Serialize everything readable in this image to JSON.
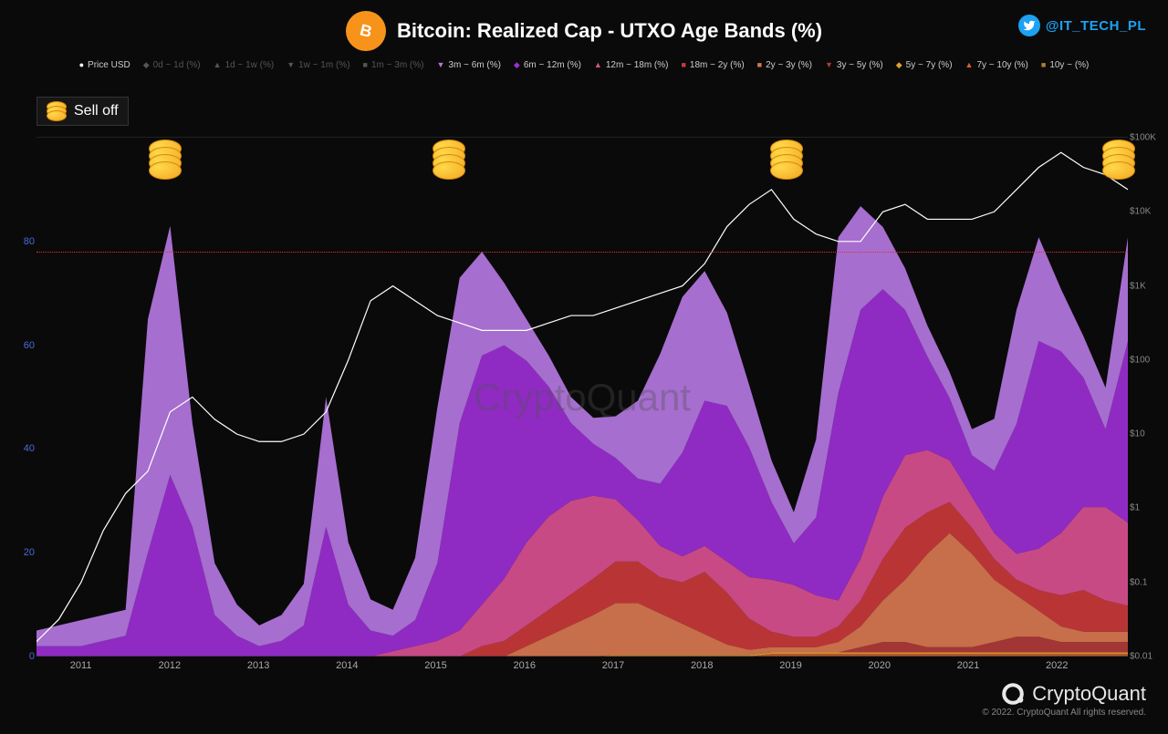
{
  "title": "Bitcoin: Realized Cap - UTXO Age Bands (%)",
  "twitter_handle": "@IT_TECH_PL",
  "selloff_label": "Sell off",
  "watermark": "CryptoQuant",
  "brand_name": "CryptoQuant",
  "copyright": "© 2022. CryptoQuant All rights reserved.",
  "legend": [
    {
      "label": "Price USD",
      "color": "#ffffff",
      "marker": "●",
      "dim": false
    },
    {
      "label": "0d ~ 1d (%)",
      "color": "#555555",
      "marker": "◆",
      "dim": true
    },
    {
      "label": "1d ~ 1w (%)",
      "color": "#555555",
      "marker": "▲",
      "dim": true
    },
    {
      "label": "1w ~ 1m (%)",
      "color": "#555555",
      "marker": "▼",
      "dim": true
    },
    {
      "label": "1m ~ 3m (%)",
      "color": "#555555",
      "marker": "■",
      "dim": true
    },
    {
      "label": "3m ~ 6m (%)",
      "color": "#b477e0",
      "marker": "▼",
      "dim": false
    },
    {
      "label": "6m ~ 12m (%)",
      "color": "#9b2fd4",
      "marker": "◆",
      "dim": false
    },
    {
      "label": "12m ~ 18m (%)",
      "color": "#d8508f",
      "marker": "▲",
      "dim": false
    },
    {
      "label": "18m ~ 2y (%)",
      "color": "#c93a3a",
      "marker": "■",
      "dim": false
    },
    {
      "label": "2y ~ 3y (%)",
      "color": "#d87750",
      "marker": "■",
      "dim": false
    },
    {
      "label": "3y ~ 5y (%)",
      "color": "#b03a3a",
      "marker": "▼",
      "dim": false
    },
    {
      "label": "5y ~ 7y (%)",
      "color": "#e0a030",
      "marker": "◆",
      "dim": false
    },
    {
      "label": "7y ~ 10y (%)",
      "color": "#d86030",
      "marker": "▲",
      "dim": false
    },
    {
      "label": "10y ~ (%)",
      "color": "#b08030",
      "marker": "■",
      "dim": false
    }
  ],
  "chart": {
    "type": "stacked-area-with-line",
    "background_color": "#0a0a0a",
    "grid_color": "#1a1a1a",
    "y_left": {
      "lim": [
        0,
        100
      ],
      "ticks": [
        0,
        20,
        40,
        60,
        80
      ],
      "color": "#4a6bd8",
      "fontsize": 11
    },
    "y_right": {
      "lim_log": [
        0.01,
        100000
      ],
      "ticks": [
        "$0.01",
        "$0.1",
        "$1",
        "$10",
        "$100",
        "$1K",
        "$10K",
        "$100K"
      ],
      "color": "#888888",
      "fontsize": 10
    },
    "x": {
      "years": [
        2011,
        2012,
        2013,
        2014,
        2015,
        2016,
        2017,
        2018,
        2019,
        2020,
        2021,
        2022
      ],
      "start": 2010.5,
      "end": 2022.8,
      "color": "#aaaaaa",
      "fontsize": 11
    },
    "threshold": {
      "value": 78,
      "color": "#e03030",
      "style": "dotted"
    },
    "coin_markers_x": [
      2011.95,
      2015.15,
      2018.95,
      2022.7
    ],
    "bands": [
      {
        "name": "10y~",
        "color": "#a87830",
        "values": [
          0,
          0,
          0,
          0,
          0,
          0,
          0,
          0,
          0,
          0,
          0,
          0,
          0,
          0,
          0,
          0,
          0,
          0,
          0,
          0,
          0,
          0,
          0,
          0,
          0,
          0,
          0,
          0,
          0,
          0,
          0,
          0,
          0,
          0,
          0,
          0,
          0,
          0,
          0,
          0,
          0,
          0,
          0,
          0,
          0,
          0,
          0,
          0,
          0,
          0
        ]
      },
      {
        "name": "7y-10y",
        "color": "#c96030",
        "values": [
          0,
          0,
          0,
          0,
          0,
          0,
          0,
          0,
          0,
          0,
          0,
          0,
          0,
          0,
          0,
          0,
          0,
          0,
          0,
          0,
          0,
          0,
          0,
          0,
          0,
          0,
          0,
          0,
          0,
          0,
          0,
          0,
          0,
          0.5,
          0.5,
          0.5,
          0.5,
          0.5,
          0.5,
          0.5,
          0.5,
          0.5,
          0.5,
          0.5,
          0.5,
          0.5,
          0.5,
          0.5,
          0.5,
          0.5
        ]
      },
      {
        "name": "5y-7y",
        "color": "#e0a030",
        "values": [
          0,
          0,
          0,
          0,
          0,
          0,
          0,
          0,
          0,
          0,
          0,
          0,
          0,
          0,
          0,
          0,
          0,
          0,
          0,
          0,
          0,
          0,
          0,
          0,
          0,
          0,
          0.3,
          0.3,
          0.3,
          0.3,
          0.3,
          0.3,
          0.3,
          0.3,
          0.3,
          0.3,
          0.3,
          0.3,
          0.3,
          0.3,
          0.3,
          0.3,
          0.3,
          0.3,
          0.3,
          0.3,
          0.3,
          0.3,
          0.3,
          0.3
        ]
      },
      {
        "name": "3y-5y",
        "color": "#b03a3a",
        "values": [
          0,
          0,
          0,
          0,
          0,
          0,
          0,
          0,
          0,
          0,
          0,
          0,
          0,
          0,
          0,
          0,
          0,
          0,
          0,
          0,
          0,
          0,
          0,
          0,
          0,
          0,
          0,
          0,
          0,
          0,
          0,
          0,
          0,
          0,
          0,
          0,
          0,
          1,
          2,
          2,
          1,
          1,
          1,
          2,
          3,
          3,
          2,
          2,
          2,
          2
        ]
      },
      {
        "name": "2y-3y",
        "color": "#d87750",
        "values": [
          0,
          0,
          0,
          0,
          0,
          0,
          0,
          0,
          0,
          0,
          0,
          0,
          0,
          0,
          0,
          0,
          0,
          0,
          0,
          0,
          0,
          0,
          2,
          4,
          6,
          8,
          10,
          10,
          8,
          6,
          4,
          2,
          1,
          1,
          1,
          1,
          2,
          4,
          8,
          12,
          18,
          22,
          18,
          12,
          8,
          5,
          3,
          2,
          2,
          2
        ]
      },
      {
        "name": "18m-2y",
        "color": "#c93a3a",
        "values": [
          0,
          0,
          0,
          0,
          0,
          0,
          0,
          0,
          0,
          0,
          0,
          0,
          0,
          0,
          0,
          0,
          0,
          0,
          0,
          0,
          2,
          3,
          4,
          5,
          6,
          7,
          8,
          8,
          7,
          8,
          12,
          10,
          6,
          3,
          2,
          2,
          3,
          5,
          8,
          10,
          8,
          6,
          5,
          4,
          3,
          4,
          6,
          8,
          6,
          5
        ]
      },
      {
        "name": "12m-18m",
        "color": "#d8508f",
        "values": [
          0,
          0,
          0,
          0,
          0,
          0,
          0,
          0,
          0,
          0,
          0,
          0,
          0,
          0,
          0,
          0,
          1,
          2,
          3,
          5,
          8,
          12,
          16,
          18,
          18,
          16,
          12,
          8,
          6,
          5,
          5,
          6,
          8,
          10,
          10,
          8,
          5,
          8,
          12,
          14,
          12,
          8,
          6,
          5,
          5,
          8,
          12,
          16,
          18,
          16
        ]
      },
      {
        "name": "6m-12m",
        "color": "#9b2fd4",
        "values": [
          2,
          2,
          2,
          3,
          4,
          20,
          35,
          25,
          8,
          4,
          2,
          3,
          6,
          25,
          10,
          5,
          3,
          5,
          15,
          40,
          48,
          45,
          35,
          25,
          15,
          10,
          8,
          8,
          12,
          20,
          28,
          30,
          25,
          15,
          8,
          15,
          40,
          48,
          40,
          28,
          18,
          12,
          8,
          12,
          25,
          40,
          35,
          25,
          15,
          35
        ]
      },
      {
        "name": "3m-6m",
        "color": "#b477e0",
        "values": [
          3,
          4,
          5,
          5,
          5,
          45,
          48,
          20,
          10,
          6,
          4,
          5,
          8,
          25,
          12,
          6,
          5,
          12,
          30,
          28,
          20,
          12,
          8,
          6,
          5,
          5,
          8,
          15,
          25,
          30,
          25,
          18,
          12,
          8,
          6,
          15,
          30,
          20,
          12,
          8,
          6,
          5,
          5,
          10,
          22,
          20,
          12,
          8,
          8,
          20
        ]
      }
    ],
    "price_line": {
      "color": "#ffffff",
      "width": 1.2,
      "values_log10": [
        -1.8,
        -1.5,
        -1.0,
        -0.3,
        0.2,
        0.5,
        1.3,
        1.5,
        1.2,
        1.0,
        0.9,
        0.9,
        1.0,
        1.3,
        2.0,
        2.8,
        3.0,
        2.8,
        2.6,
        2.5,
        2.4,
        2.4,
        2.4,
        2.5,
        2.6,
        2.6,
        2.7,
        2.8,
        2.9,
        3.0,
        3.3,
        3.8,
        4.1,
        4.3,
        3.9,
        3.7,
        3.6,
        3.6,
        4.0,
        4.1,
        3.9,
        3.9,
        3.9,
        4.0,
        4.3,
        4.6,
        4.8,
        4.6,
        4.5,
        4.3
      ]
    }
  }
}
